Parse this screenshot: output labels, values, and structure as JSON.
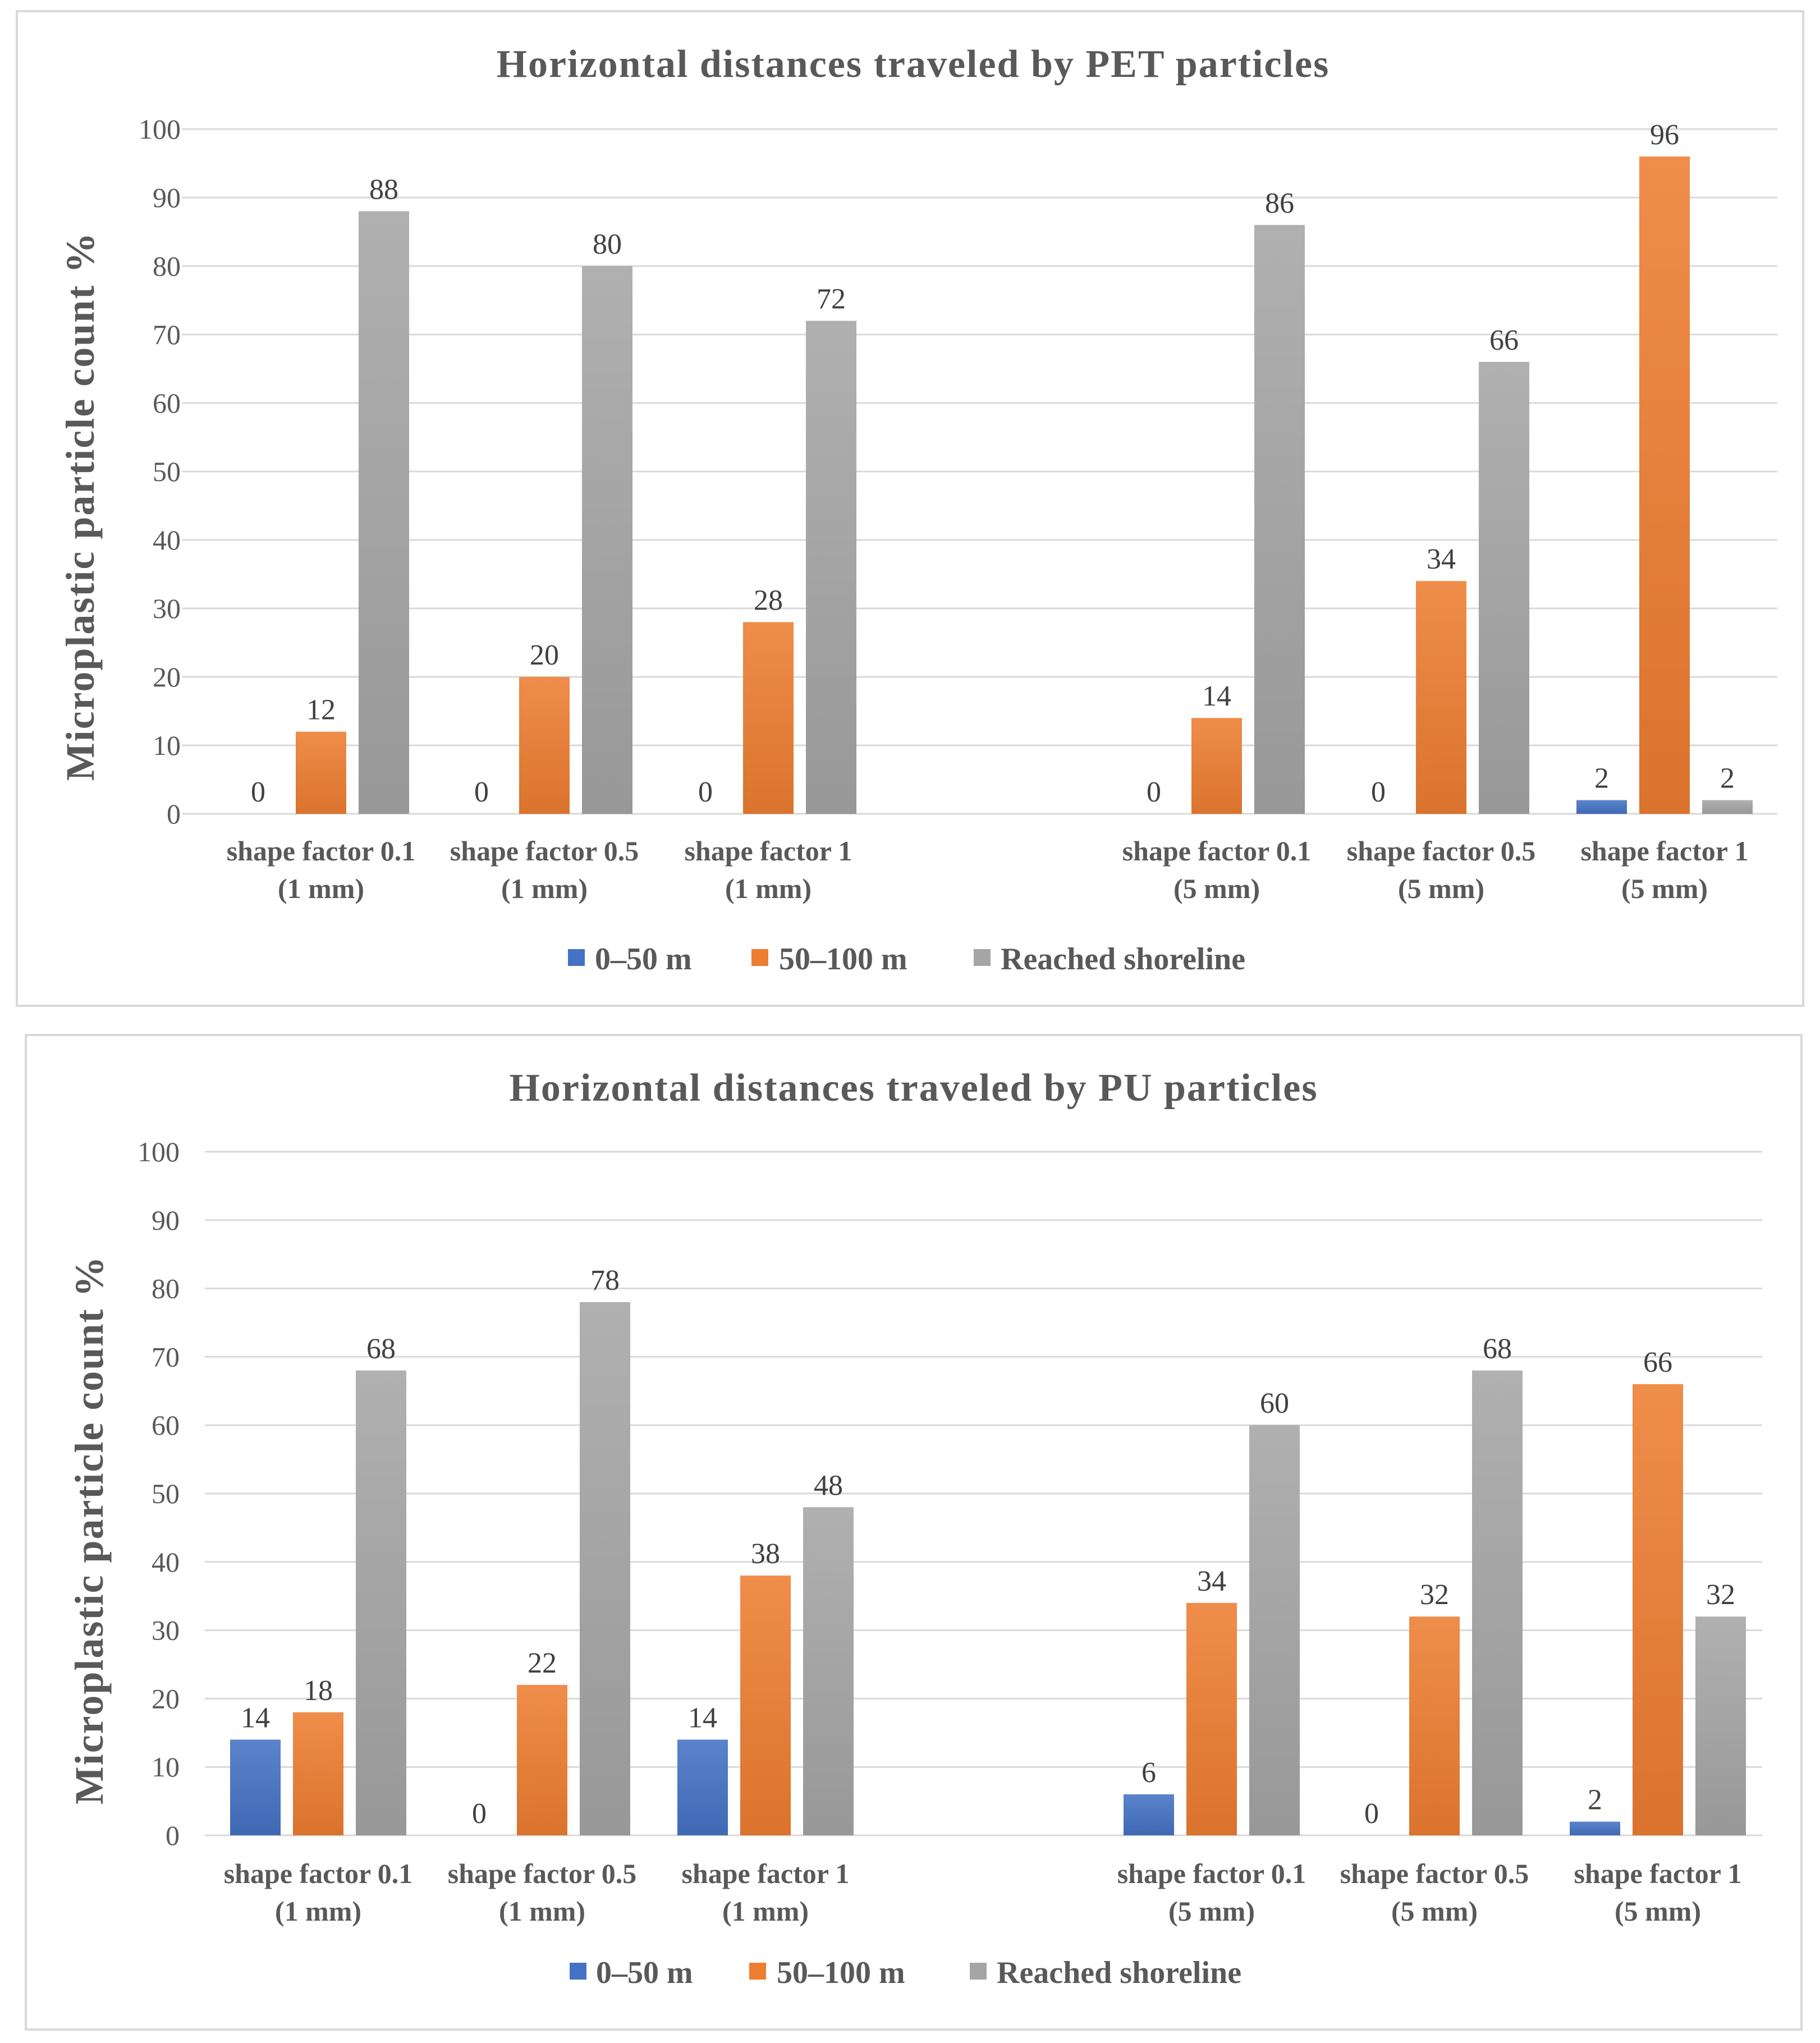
{
  "chart_data": [
    {
      "type": "bar",
      "title": "Horizontal distances traveled by PET particles",
      "ylabel": "Microplastic particle count %",
      "xlabel": "",
      "ylim": [
        0,
        100
      ],
      "yticks": [
        0,
        10,
        20,
        30,
        40,
        50,
        60,
        70,
        80,
        90,
        100
      ],
      "grid": true,
      "legend_position": "bottom",
      "categories": [
        [
          "shape factor 0.1",
          "(1 mm)"
        ],
        [
          "shape factor 0.5",
          "(1 mm)"
        ],
        [
          "shape factor 1",
          "(1 mm)"
        ],
        [
          "shape factor 0.1",
          "(5 mm)"
        ],
        [
          "shape factor 0.5",
          "(5 mm)"
        ],
        [
          "shape factor 1",
          "(5 mm)"
        ]
      ],
      "series": [
        {
          "name": "0–50 m",
          "color": "#4472c4",
          "values": [
            0,
            0,
            0,
            0,
            0,
            2
          ]
        },
        {
          "name": "50–100 m",
          "color": "#ed7d31",
          "values": [
            12,
            20,
            28,
            14,
            34,
            96
          ]
        },
        {
          "name": "Reached shoreline",
          "color": "#a5a5a5",
          "values": [
            88,
            80,
            72,
            86,
            66,
            2
          ]
        }
      ]
    },
    {
      "type": "bar",
      "title": "Horizontal distances traveled by PU particles",
      "ylabel": "Microplastic particle count %",
      "xlabel": "",
      "ylim": [
        0,
        100
      ],
      "yticks": [
        0,
        10,
        20,
        30,
        40,
        50,
        60,
        70,
        80,
        90,
        100
      ],
      "grid": true,
      "legend_position": "bottom",
      "categories": [
        [
          "shape factor 0.1",
          "(1 mm)"
        ],
        [
          "shape factor 0.5",
          "(1 mm)"
        ],
        [
          "shape factor 1",
          "(1 mm)"
        ],
        [
          "shape factor 0.1",
          "(5 mm)"
        ],
        [
          "shape factor 0.5",
          "(5 mm)"
        ],
        [
          "shape factor 1",
          "(5 mm)"
        ]
      ],
      "series": [
        {
          "name": "0–50 m",
          "color": "#4472c4",
          "values": [
            14,
            0,
            14,
            6,
            0,
            2
          ]
        },
        {
          "name": "50–100 m",
          "color": "#ed7d31",
          "values": [
            18,
            22,
            38,
            34,
            32,
            66
          ]
        },
        {
          "name": "Reached shoreline",
          "color": "#a5a5a5",
          "values": [
            68,
            78,
            48,
            60,
            68,
            32
          ]
        }
      ]
    }
  ]
}
